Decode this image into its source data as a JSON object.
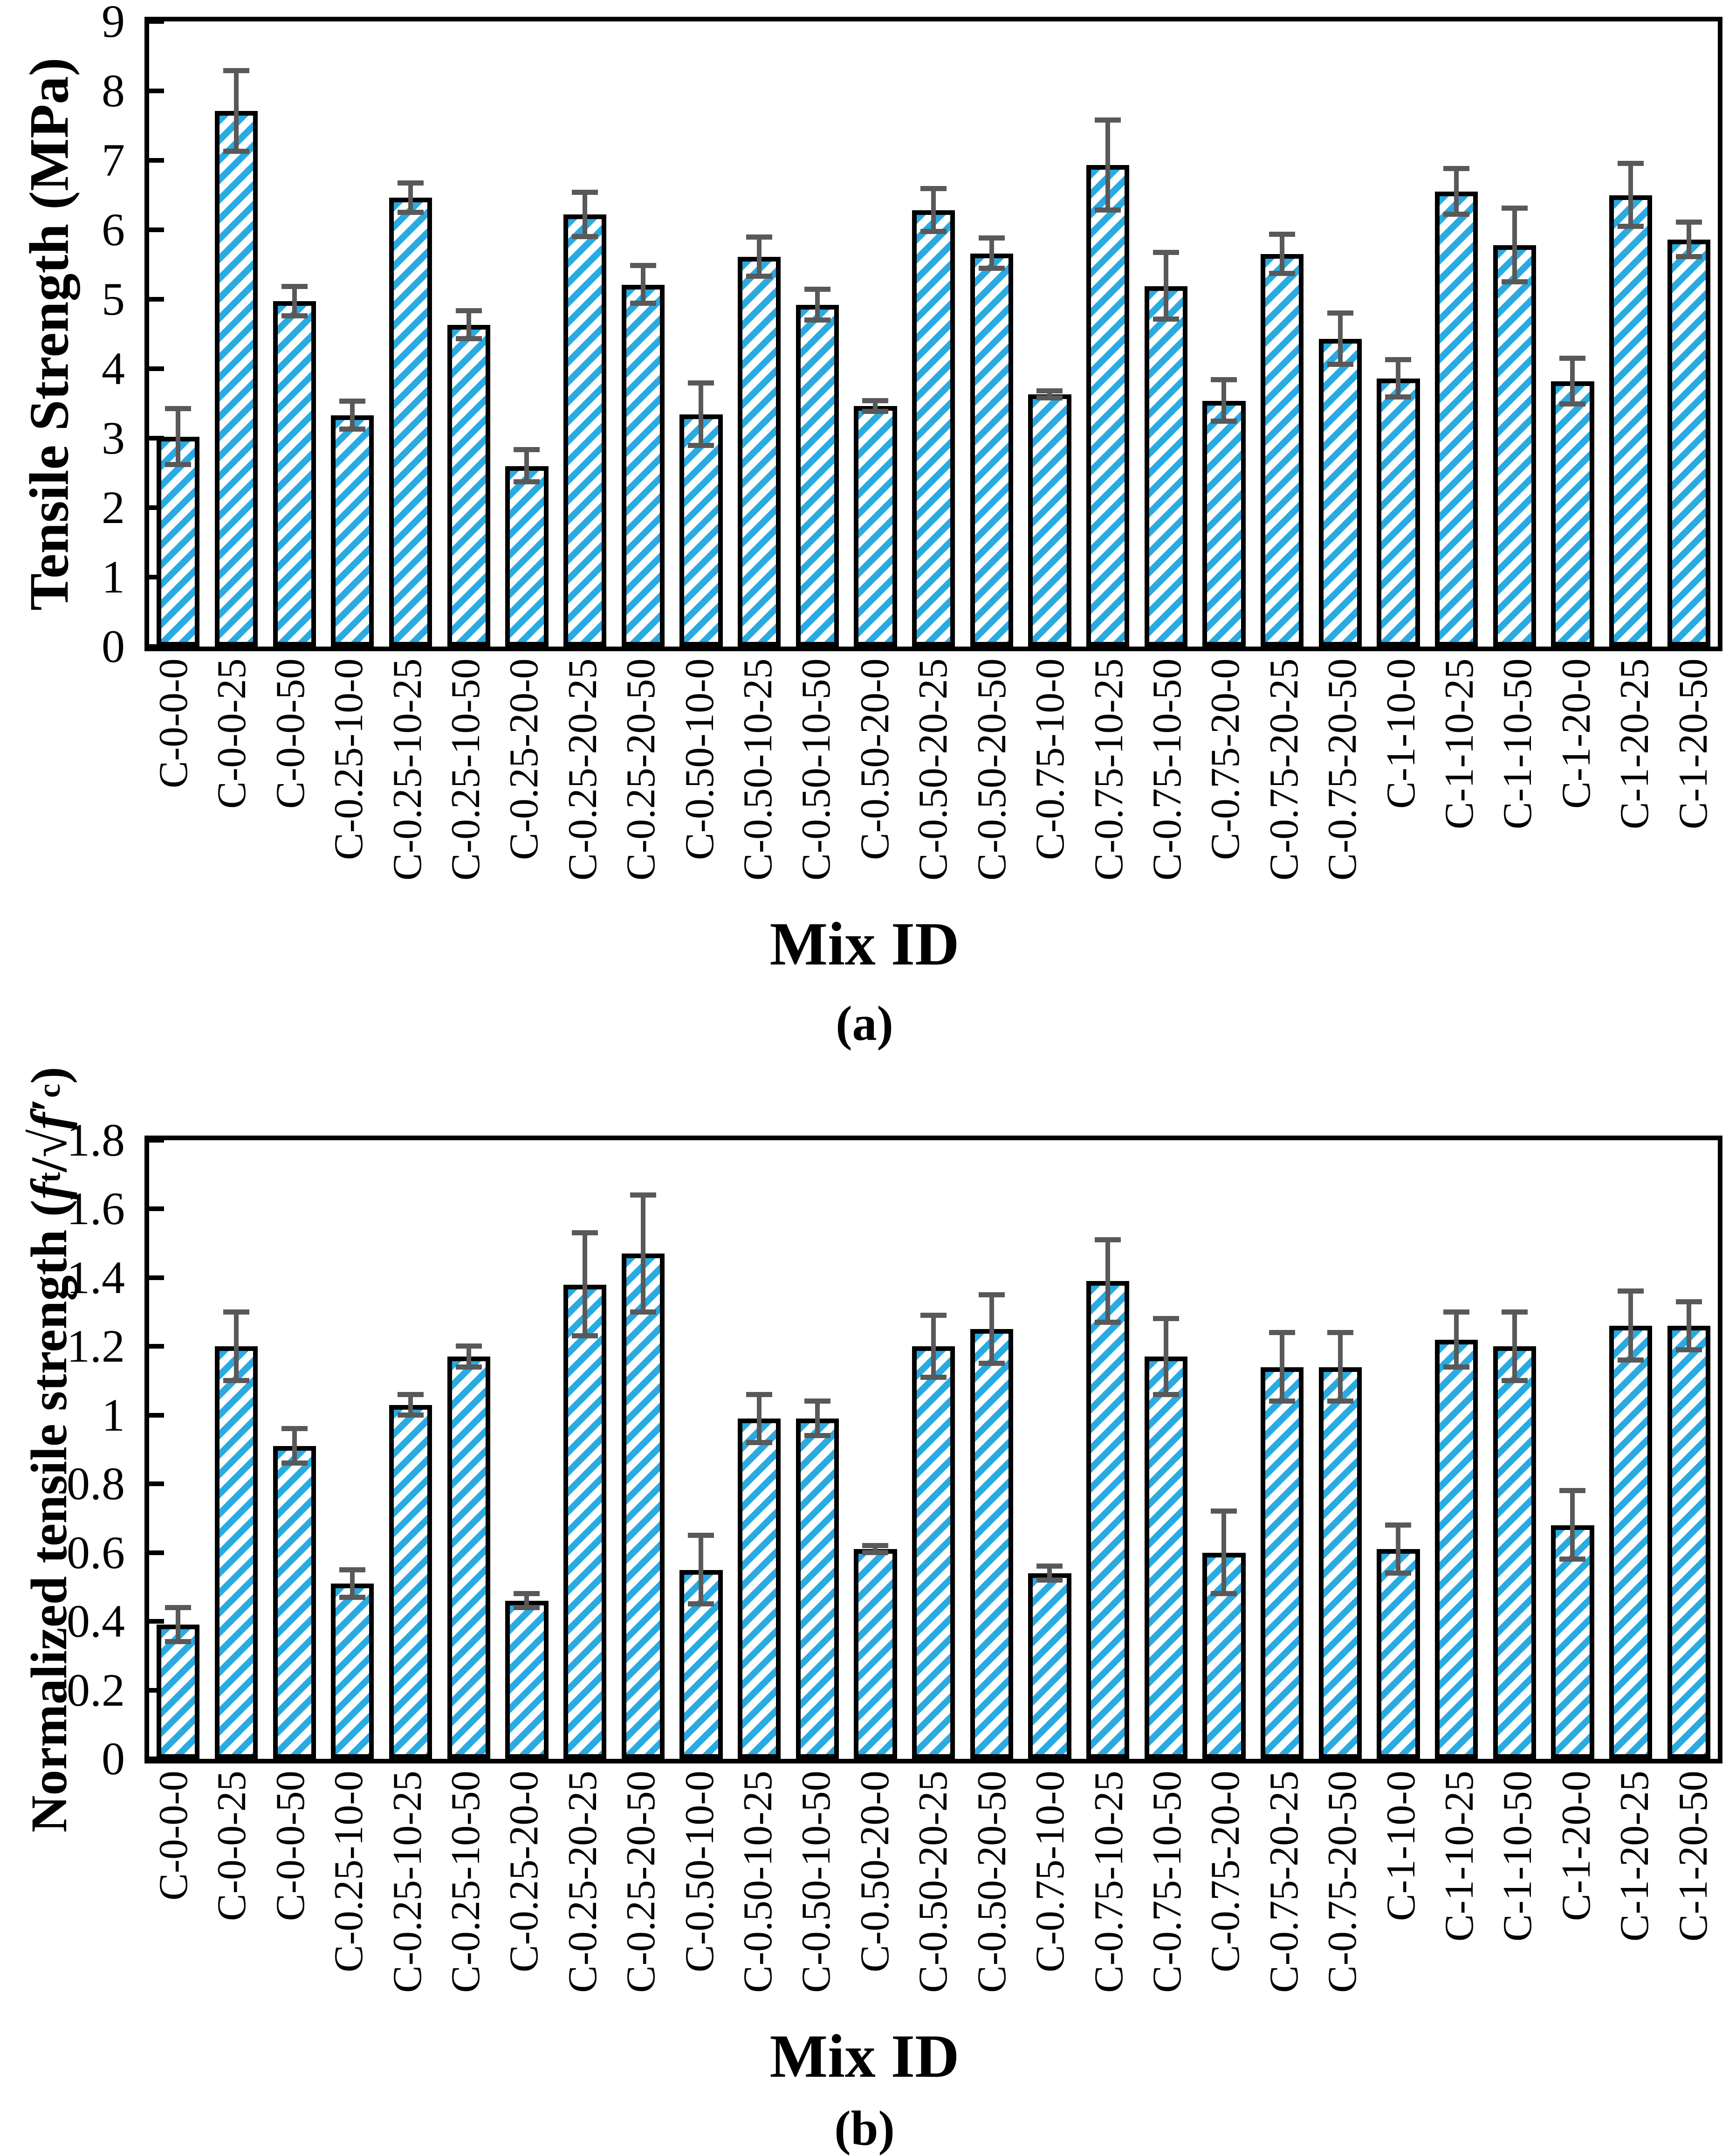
{
  "figure": {
    "captions": [
      "(a)",
      "(b)"
    ],
    "ylabel_b_parts": {
      "prefix": "Normalized tensile strength (",
      "f1": "f",
      "sub1": "t",
      "slash": "/",
      "root": "√",
      "f2": "f",
      "prime": "′",
      "sub2": "c",
      "suffix": ")"
    },
    "colors": {
      "hatch": "#29ABE2",
      "bar_fill": "#FFFFFF",
      "bar_edge": "#000000",
      "error_bar": "#595959",
      "axis": "#000000"
    }
  },
  "chart_data": [
    {
      "type": "bar",
      "title": "",
      "xlabel": "Mix ID",
      "ylabel": "Tensile Strength (MPa)",
      "ylim": [
        0,
        9
      ],
      "grid": false,
      "legend_position": "none",
      "yticks": [
        0,
        1,
        2,
        3,
        4,
        5,
        6,
        7,
        8,
        9
      ],
      "ytick_labels": [
        "0",
        "1",
        "2",
        "3",
        "4",
        "5",
        "6",
        "7",
        "8",
        "9"
      ],
      "categories": [
        "C-0-0-0",
        "C-0-0-25",
        "C-0-0-50",
        "C-0.25-10-0",
        "C-0.25-10-25",
        "C-0.25-10-50",
        "C-0.25-20-0",
        "C-0.25-20-25",
        "C-0.25-20-50",
        "C-0.50-10-0",
        "C-0.50-10-25",
        "C-0.50-10-50",
        "C-0.50-20-0",
        "C-0.50-20-25",
        "C-0.50-20-50",
        "C-0.75-10-0",
        "C-0.75-10-25",
        "C-0.75-10-50",
        "C-0.75-20-0",
        "C-0.75-20-25",
        "C-0.75-20-50",
        "C-1-10-0",
        "C-1-10-25",
        "C-1-10-50",
        "C-1-20-0",
        "C-1-20-25",
        "C-1-20-50"
      ],
      "values": [
        3.02,
        7.71,
        4.97,
        3.33,
        6.46,
        4.63,
        2.6,
        6.22,
        5.21,
        3.34,
        5.61,
        4.92,
        3.46,
        6.28,
        5.66,
        3.63,
        6.93,
        5.19,
        3.54,
        5.65,
        4.43,
        3.86,
        6.55,
        5.78,
        3.82,
        6.5,
        5.86
      ],
      "errors": [
        0.4,
        0.58,
        0.21,
        0.2,
        0.21,
        0.2,
        0.23,
        0.32,
        0.27,
        0.45,
        0.28,
        0.22,
        0.08,
        0.31,
        0.22,
        0.05,
        0.65,
        0.48,
        0.3,
        0.28,
        0.37,
        0.27,
        0.33,
        0.53,
        0.33,
        0.45,
        0.25
      ]
    },
    {
      "type": "bar",
      "title": "",
      "xlabel": "Mix ID",
      "ylabel": "Normalized tensile strength (ft/√f′c)",
      "ylim": [
        0,
        1.8
      ],
      "grid": false,
      "legend_position": "none",
      "yticks": [
        0,
        0.2,
        0.4,
        0.6,
        0.8,
        1.0,
        1.2,
        1.4,
        1.6,
        1.8
      ],
      "ytick_labels": [
        "0",
        "0.2",
        "0.4",
        "0.6",
        "0.8",
        "1",
        "1.2",
        "1.4",
        "1.6",
        "1.8"
      ],
      "categories": [
        "C-0-0-0",
        "C-0-0-25",
        "C-0-0-50",
        "C-0.25-10-0",
        "C-0.25-10-25",
        "C-0.25-10-50",
        "C-0.25-20-0",
        "C-0.25-20-25",
        "C-0.25-20-50",
        "C-0.50-10-0",
        "C-0.50-10-25",
        "C-0.50-10-50",
        "C-0.50-20-0",
        "C-0.50-20-25",
        "C-0.50-20-50",
        "C-0.75-10-0",
        "C-0.75-10-25",
        "C-0.75-10-50",
        "C-0.75-20-0",
        "C-0.75-20-25",
        "C-0.75-20-50",
        "C-1-10-0",
        "C-1-10-25",
        "C-1-10-50",
        "C-1-20-0",
        "C-1-20-25",
        "C-1-20-50"
      ],
      "values": [
        0.39,
        1.2,
        0.91,
        0.51,
        1.03,
        1.17,
        0.46,
        1.38,
        1.47,
        0.55,
        0.99,
        0.99,
        0.61,
        1.2,
        1.25,
        0.54,
        1.39,
        1.17,
        0.6,
        1.14,
        1.14,
        0.61,
        1.22,
        1.2,
        0.68,
        1.26,
        1.26
      ],
      "errors": [
        0.05,
        0.1,
        0.05,
        0.04,
        0.03,
        0.03,
        0.02,
        0.15,
        0.17,
        0.1,
        0.07,
        0.05,
        0.01,
        0.09,
        0.1,
        0.02,
        0.12,
        0.11,
        0.12,
        0.1,
        0.1,
        0.07,
        0.08,
        0.1,
        0.1,
        0.1,
        0.07
      ]
    }
  ]
}
